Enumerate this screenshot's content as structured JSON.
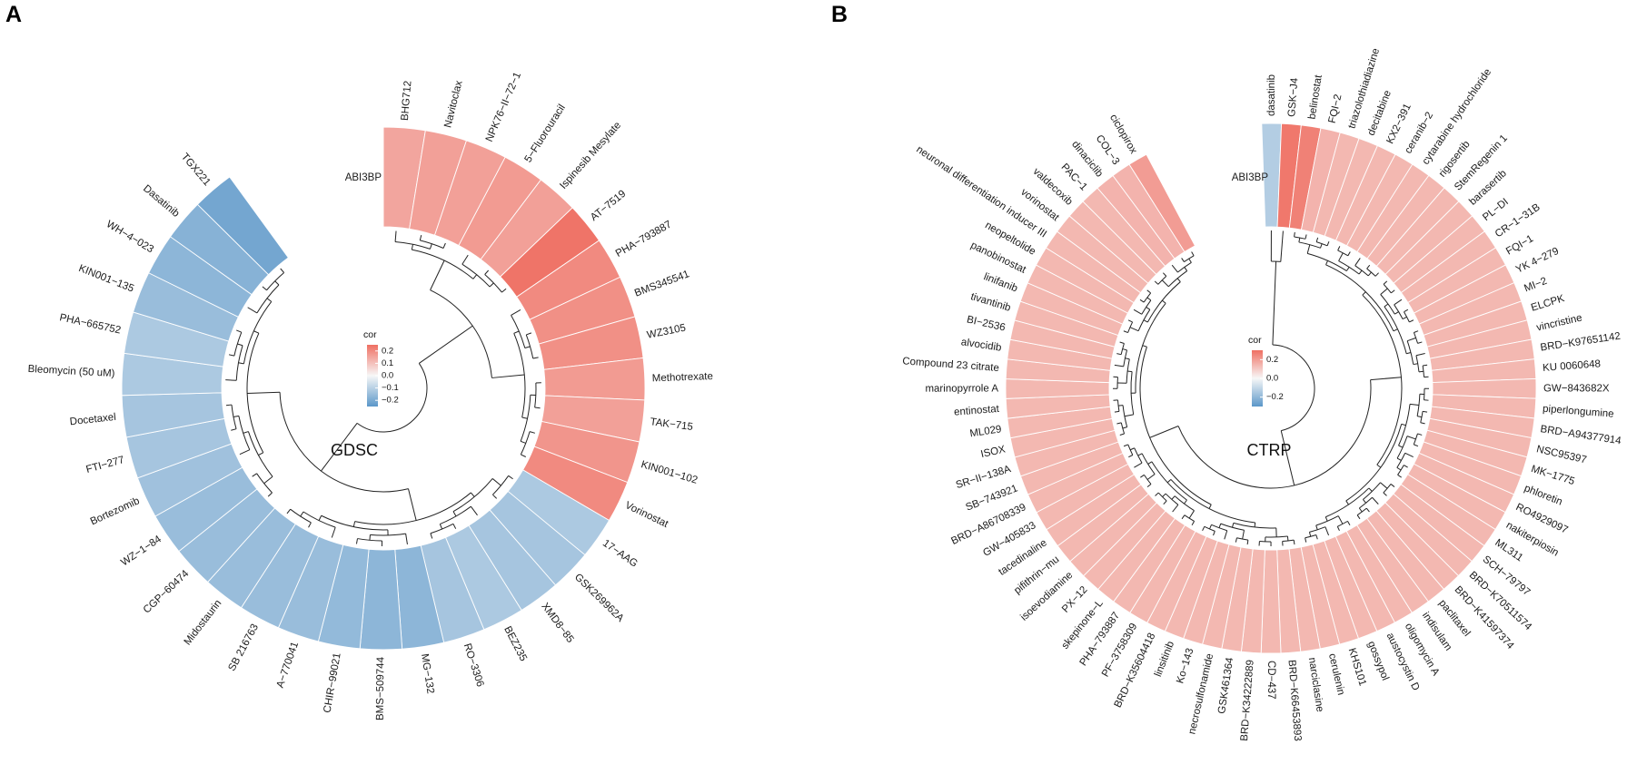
{
  "colors": {
    "positive_max": "#ef6f62",
    "neutral": "#f7f7f7",
    "negative_max": "#5b97c9",
    "tree": "#222222",
    "separator": "#ffffff"
  },
  "chart_data": [
    {
      "type": "circular-dendrogram-heatmap",
      "panel": "A",
      "title": "GDSC",
      "legend_title": "cor",
      "legend_ticks": [
        "0.2",
        "0.1",
        "0.0",
        "−0.1",
        "−0.2"
      ],
      "legend_tick_values": [
        0.2,
        0.1,
        0.0,
        -0.1,
        -0.2
      ],
      "color_range": [
        -0.25,
        0.25
      ],
      "column_label": "ABI3BP",
      "drugs": [
        {
          "name": "BHG712",
          "cor": 0.15
        },
        {
          "name": "Navitoclax",
          "cor": 0.16
        },
        {
          "name": "NPK76−II−72−1",
          "cor": 0.16
        },
        {
          "name": "5−Fluorouracil",
          "cor": 0.17
        },
        {
          "name": "Ispinesib Mesylate",
          "cor": 0.16
        },
        {
          "name": "AT−7519",
          "cor": 0.24
        },
        {
          "name": "PHA−793887",
          "cor": 0.2
        },
        {
          "name": "BMS345541",
          "cor": 0.19
        },
        {
          "name": "WZ3105",
          "cor": 0.19
        },
        {
          "name": "Methotrexate",
          "cor": 0.17
        },
        {
          "name": "TAK−715",
          "cor": 0.16
        },
        {
          "name": "KIN001−102",
          "cor": 0.18
        },
        {
          "name": "Vorinostat",
          "cor": 0.2
        },
        {
          "name": "17−AAG",
          "cor": -0.12
        },
        {
          "name": "GSK269962A",
          "cor": -0.13
        },
        {
          "name": "XMD8−85",
          "cor": -0.13
        },
        {
          "name": "BEZ235",
          "cor": -0.12
        },
        {
          "name": "RO−3306",
          "cor": -0.13
        },
        {
          "name": "MG−132",
          "cor": -0.17
        },
        {
          "name": "BMS−509744",
          "cor": -0.17
        },
        {
          "name": "CHIR−99021",
          "cor": -0.16
        },
        {
          "name": "A−770041",
          "cor": -0.15
        },
        {
          "name": "SB 216763",
          "cor": -0.15
        },
        {
          "name": "Midostaurin",
          "cor": -0.15
        },
        {
          "name": "CGP−60474",
          "cor": -0.15
        },
        {
          "name": "WZ−1−84",
          "cor": -0.15
        },
        {
          "name": "Bortezomib",
          "cor": -0.14
        },
        {
          "name": "FTI−277",
          "cor": -0.13
        },
        {
          "name": "Docetaxel",
          "cor": -0.13
        },
        {
          "name": "Bleomycin (50 uM)",
          "cor": -0.12
        },
        {
          "name": "PHA−665752",
          "cor": -0.12
        },
        {
          "name": "KIN001−135",
          "cor": -0.15
        },
        {
          "name": "WH−4−023",
          "cor": -0.17
        },
        {
          "name": "Dasatinib",
          "cor": -0.18
        },
        {
          "name": "TGX221",
          "cor": -0.21
        }
      ]
    },
    {
      "type": "circular-dendrogram-heatmap",
      "panel": "B",
      "title": "CTRP",
      "legend_title": "cor",
      "legend_ticks": [
        "0.2",
        "0.0",
        "−0.2"
      ],
      "legend_tick_values": [
        0.2,
        0.0,
        -0.2
      ],
      "color_range": [
        -0.3,
        0.3
      ],
      "column_label": "ABI3BP",
      "drugs": [
        {
          "name": "dasatinib",
          "cor": -0.13
        },
        {
          "name": "GSK−J4",
          "cor": 0.28
        },
        {
          "name": "belinostat",
          "cor": 0.26
        },
        {
          "name": "FQI−2",
          "cor": 0.15
        },
        {
          "name": "triazolothiadiazine",
          "cor": 0.14
        },
        {
          "name": "decitabine",
          "cor": 0.14
        },
        {
          "name": "KX2−391",
          "cor": 0.14
        },
        {
          "name": "ceranib−2",
          "cor": 0.14
        },
        {
          "name": "cytarabine hydrochloride",
          "cor": 0.14
        },
        {
          "name": "rigosertib",
          "cor": 0.14
        },
        {
          "name": "StemRegenin 1",
          "cor": 0.14
        },
        {
          "name": "barasertib",
          "cor": 0.14
        },
        {
          "name": "PL−DI",
          "cor": 0.14
        },
        {
          "name": "CR−1−31B",
          "cor": 0.14
        },
        {
          "name": "FQI−1",
          "cor": 0.14
        },
        {
          "name": "YK 4−279",
          "cor": 0.14
        },
        {
          "name": "MI−2",
          "cor": 0.14
        },
        {
          "name": "ELCPK",
          "cor": 0.14
        },
        {
          "name": "vincristine",
          "cor": 0.14
        },
        {
          "name": "BRD−K97651142",
          "cor": 0.14
        },
        {
          "name": "KU 0060648",
          "cor": 0.14
        },
        {
          "name": "GW−843682X",
          "cor": 0.14
        },
        {
          "name": "piperlongumine",
          "cor": 0.14
        },
        {
          "name": "BRD−A94377914",
          "cor": 0.14
        },
        {
          "name": "NSC95397",
          "cor": 0.14
        },
        {
          "name": "MK−1775",
          "cor": 0.14
        },
        {
          "name": "phloretin",
          "cor": 0.14
        },
        {
          "name": "RO4929097",
          "cor": 0.14
        },
        {
          "name": "nakiterpiosin",
          "cor": 0.14
        },
        {
          "name": "ML311",
          "cor": 0.14
        },
        {
          "name": "SCH−79797",
          "cor": 0.14
        },
        {
          "name": "BRD−K70511574",
          "cor": 0.14
        },
        {
          "name": "BRD−K41597374",
          "cor": 0.14
        },
        {
          "name": "paclitaxel",
          "cor": 0.14
        },
        {
          "name": "indisulam",
          "cor": 0.14
        },
        {
          "name": "oligomycin A",
          "cor": 0.14
        },
        {
          "name": "austocystin D",
          "cor": 0.14
        },
        {
          "name": "gossypol",
          "cor": 0.14
        },
        {
          "name": "KHS101",
          "cor": 0.14
        },
        {
          "name": "cerulenin",
          "cor": 0.14
        },
        {
          "name": "narciclasine",
          "cor": 0.14
        },
        {
          "name": "BRD−K66453893",
          "cor": 0.14
        },
        {
          "name": "CD−437",
          "cor": 0.14
        },
        {
          "name": "BRD−K34222889",
          "cor": 0.14
        },
        {
          "name": "GSK461364",
          "cor": 0.14
        },
        {
          "name": "necrosulfonamide",
          "cor": 0.14
        },
        {
          "name": "Ko−143",
          "cor": 0.14
        },
        {
          "name": "linsitinib",
          "cor": 0.14
        },
        {
          "name": "BRD−K35604418",
          "cor": 0.14
        },
        {
          "name": "PF−3758309",
          "cor": 0.14
        },
        {
          "name": "PHA−793887",
          "cor": 0.14
        },
        {
          "name": "skepinone−L",
          "cor": 0.14
        },
        {
          "name": "PX−12",
          "cor": 0.14
        },
        {
          "name": "isoevodiamine",
          "cor": 0.14
        },
        {
          "name": "pifithrin−mu",
          "cor": 0.14
        },
        {
          "name": "tacedinaline",
          "cor": 0.14
        },
        {
          "name": "GW−405833",
          "cor": 0.14
        },
        {
          "name": "BRD−A86708339",
          "cor": 0.14
        },
        {
          "name": "SB−743921",
          "cor": 0.14
        },
        {
          "name": "SR−II−138A",
          "cor": 0.14
        },
        {
          "name": "ISOX",
          "cor": 0.14
        },
        {
          "name": "ML029",
          "cor": 0.14
        },
        {
          "name": "entinostat",
          "cor": 0.14
        },
        {
          "name": "marinopyrrole A",
          "cor": 0.14
        },
        {
          "name": "Compound 23 citrate",
          "cor": 0.14
        },
        {
          "name": "alvocidib",
          "cor": 0.14
        },
        {
          "name": "BI−2536",
          "cor": 0.14
        },
        {
          "name": "tivantinib",
          "cor": 0.14
        },
        {
          "name": "linifanib",
          "cor": 0.14
        },
        {
          "name": "panobinostat",
          "cor": 0.14
        },
        {
          "name": "neopeltolide",
          "cor": 0.14
        },
        {
          "name": "neuronal differentiation inducer III",
          "cor": 0.14
        },
        {
          "name": "vorinostat",
          "cor": 0.14
        },
        {
          "name": "valdecoxib",
          "cor": 0.14
        },
        {
          "name": "PAC−1",
          "cor": 0.14
        },
        {
          "name": "dinaciclib",
          "cor": 0.15
        },
        {
          "name": "COL−3",
          "cor": 0.15
        },
        {
          "name": "ciclopirox",
          "cor": 0.2
        }
      ]
    }
  ]
}
